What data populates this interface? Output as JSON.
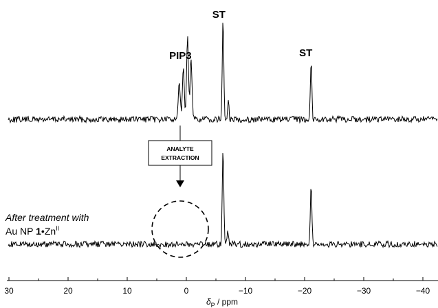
{
  "chart_data": {
    "type": "line",
    "xlabel": {
      "symbol": "δ",
      "subscript": "P",
      "unit": " / ppm"
    },
    "x_reversed": true,
    "xlim": [
      33,
      -47
    ],
    "xticks": [
      {
        "value": 30,
        "label": "30"
      },
      {
        "value": 20,
        "label": "20"
      },
      {
        "value": 10,
        "label": "10"
      },
      {
        "value": 0,
        "label": "0"
      },
      {
        "value": -10,
        "label": "−10"
      },
      {
        "value": -20,
        "label": "−20"
      },
      {
        "value": -30,
        "label": "−30"
      },
      {
        "value": -40,
        "label": "−40"
      }
    ],
    "series": [
      {
        "id": "before",
        "peaks": [
          {
            "x": 0.5,
            "height": 0.55,
            "width": 0.22
          },
          {
            "x": -0.2,
            "height": 0.82,
            "width": 0.22
          },
          {
            "x": -0.8,
            "height": 0.62,
            "width": 0.22
          },
          {
            "x": 1.2,
            "height": 0.38,
            "width": 0.25
          },
          {
            "x": -6.2,
            "height": 1.0,
            "width": 0.18
          },
          {
            "x": -7.1,
            "height": 0.18,
            "width": 0.15
          },
          {
            "x": -21.1,
            "height": 0.58,
            "width": 0.18
          }
        ]
      },
      {
        "id": "after",
        "peaks": [
          {
            "x": -6.2,
            "height": 1.0,
            "width": 0.18
          },
          {
            "x": -7.0,
            "height": 0.15,
            "width": 0.15
          },
          {
            "x": -21.1,
            "height": 0.6,
            "width": 0.18
          }
        ]
      }
    ],
    "annotations": [
      {
        "text": "ST",
        "x": -5.5,
        "series": "before"
      },
      {
        "text": "ST",
        "x": -20.2,
        "series": "before"
      },
      {
        "text": "PIP3",
        "x": 1.0,
        "series": "before"
      }
    ],
    "arrow_box_label": [
      "ANALYTE",
      "EXTRACTION"
    ],
    "note_line1": "After treatment with",
    "note_line2": {
      "prefix": "Au NP ",
      "bold": "1",
      "bullet": "•",
      "metal": "Zn",
      "superscript": "II"
    }
  }
}
